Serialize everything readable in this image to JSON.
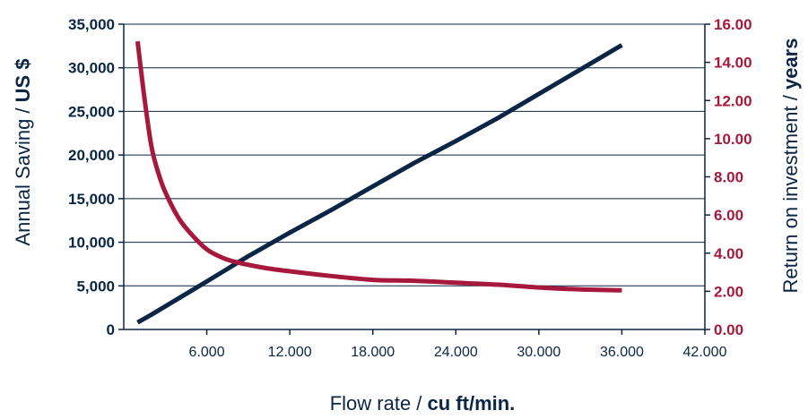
{
  "chart_data": {
    "type": "line",
    "xlabel": {
      "prefix": "Flow rate / ",
      "unit": "cu ft/min."
    },
    "ylabel_left": {
      "prefix": "Annual Saving / ",
      "unit": "US $"
    },
    "ylabel_right": {
      "prefix": "Return on investment / ",
      "unit": "years"
    },
    "xlim": [
      0,
      42000
    ],
    "ylim_left": [
      0,
      35000
    ],
    "ylim_right": [
      0,
      16
    ],
    "x_ticks": [
      6000,
      12000,
      18000,
      24000,
      30000,
      36000,
      42000
    ],
    "x_tick_labels": [
      "6.000",
      "12.000",
      "18.000",
      "24.000",
      "30.000",
      "36.000",
      "42.000"
    ],
    "y_left_ticks": [
      0,
      5000,
      10000,
      15000,
      20000,
      25000,
      30000,
      35000
    ],
    "y_left_tick_labels": [
      "0",
      "5,000",
      "10,000",
      "15,000",
      "20,000",
      "25,000",
      "30,000",
      "35,000"
    ],
    "y_right_ticks": [
      0,
      2,
      4,
      6,
      8,
      10,
      12,
      14,
      16
    ],
    "y_right_tick_labels": [
      "0.00",
      "2.00",
      "4.00",
      "6.00",
      "8.00",
      "10.00",
      "12.00",
      "14.00",
      "16.00"
    ],
    "grid": "horizontal",
    "series": [
      {
        "axis": "left",
        "color": "#0b2545",
        "x": [
          1000,
          2000,
          4000,
          6000,
          9000,
          12000,
          15000,
          18000,
          21000,
          24000,
          27000,
          30000,
          33000,
          36000
        ],
        "values": [
          800,
          1700,
          3600,
          5500,
          8400,
          11100,
          13700,
          16400,
          19100,
          21600,
          24200,
          27000,
          29800,
          32600
        ]
      },
      {
        "axis": "right",
        "color": "#a6193c",
        "x": [
          1000,
          1500,
          2000,
          2500,
          3000,
          4000,
          5000,
          6000,
          7000,
          8000,
          10000,
          12000,
          15000,
          18000,
          21000,
          24000,
          27000,
          30000,
          33000,
          36000
        ],
        "values": [
          15.1,
          12.1,
          9.6,
          8.2,
          7.2,
          5.8,
          4.9,
          4.2,
          3.8,
          3.55,
          3.25,
          3.05,
          2.8,
          2.6,
          2.55,
          2.45,
          2.35,
          2.2,
          2.1,
          2.05
        ]
      }
    ]
  }
}
